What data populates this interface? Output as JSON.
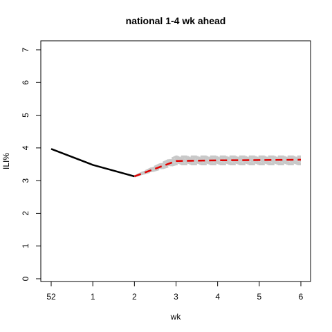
{
  "chart_data": {
    "type": "line",
    "title": "national 1-4 wk ahead",
    "xlabel": "wk",
    "ylabel": "ILI%",
    "x_tick_labels": [
      "52",
      "1",
      "2",
      "3",
      "4",
      "5",
      "6"
    ],
    "y_ticks": [
      0,
      1,
      2,
      3,
      4,
      5,
      6,
      7
    ],
    "xlim": [
      0,
      6
    ],
    "ylim": [
      0,
      7
    ],
    "grid": false,
    "colors": {
      "observed": "#000000",
      "forecast": "#e00000",
      "ensemble": "#c8c8c8"
    },
    "series": [
      {
        "role": "observed",
        "style": "solid",
        "x": [
          0,
          1,
          2
        ],
        "values": [
          3.97,
          3.48,
          3.13
        ]
      },
      {
        "role": "forecast",
        "style": "dashed",
        "x": [
          2,
          3,
          4,
          5,
          6
        ],
        "values": [
          3.13,
          3.6,
          3.62,
          3.63,
          3.64
        ]
      }
    ],
    "ensemble": {
      "style": "dashed",
      "x": [
        2,
        3,
        4,
        5,
        6
      ],
      "start": 3.13,
      "levels": [
        3.5,
        3.52,
        3.54,
        3.56,
        3.58,
        3.6,
        3.62,
        3.64,
        3.66,
        3.68,
        3.7,
        3.72,
        3.74
      ]
    }
  }
}
